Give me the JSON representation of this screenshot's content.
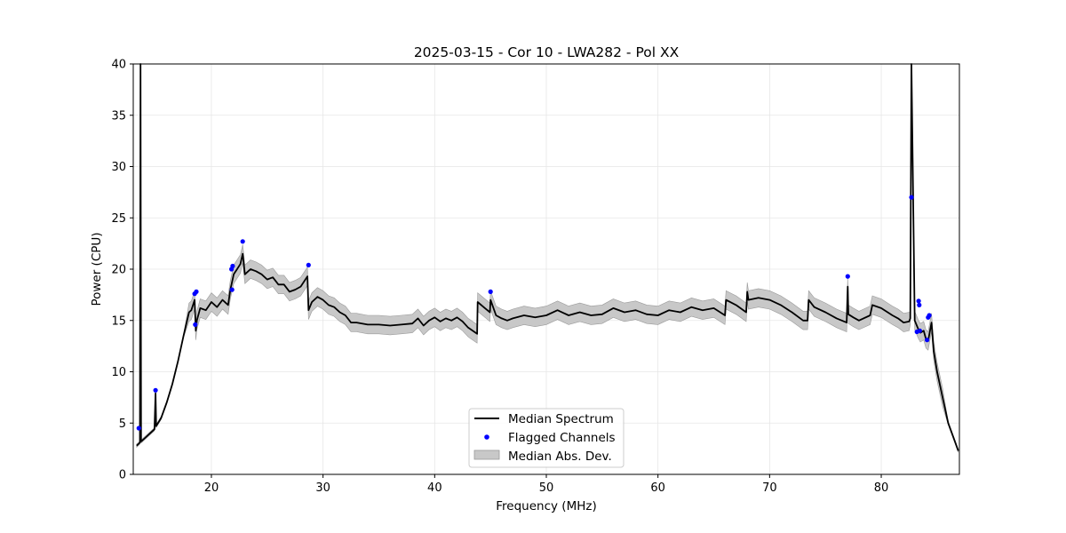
{
  "chart_data": {
    "type": "line",
    "title": "2025-03-15 - Cor 10 - LWA282 - Pol XX",
    "xlabel": "Frequency (MHz)",
    "ylabel": "Power (CPU)",
    "xlim": [
      13,
      87
    ],
    "ylim": [
      0,
      40
    ],
    "xticks": [
      20,
      30,
      40,
      50,
      60,
      70,
      80
    ],
    "yticks": [
      0,
      5,
      10,
      15,
      20,
      25,
      30,
      35,
      40
    ],
    "grid": true,
    "legend_position": "bottom-center",
    "legend": [
      "Median Spectrum",
      "Flagged Channels",
      "Median Abs. Dev."
    ],
    "colors": {
      "median": "#000000",
      "flagged": "#0000ff",
      "mad_fill": "#c8c8c8",
      "mad_edge": "#9a9a9a",
      "grid": "#e6e6e6"
    },
    "median_spectrum": {
      "x": [
        13.3,
        13.5,
        13.6,
        13.65,
        13.7,
        13.8,
        14.0,
        14.5,
        14.9,
        15.0,
        15.05,
        15.5,
        16.0,
        16.5,
        17.0,
        17.5,
        18.0,
        18.2,
        18.5,
        18.6,
        18.7,
        19.0,
        19.5,
        20.0,
        20.5,
        21.0,
        21.5,
        21.7,
        21.8,
        22.0,
        22.3,
        22.6,
        22.8,
        23.0,
        23.5,
        24.0,
        24.5,
        25.0,
        25.5,
        26.0,
        26.5,
        27.0,
        27.5,
        28.0,
        28.6,
        28.7,
        29.0,
        29.5,
        30.0,
        30.5,
        31.0,
        31.5,
        32.0,
        32.5,
        33.0,
        34.0,
        35.0,
        36.0,
        37.0,
        38.0,
        38.5,
        39.0,
        39.5,
        40.0,
        40.5,
        41.0,
        41.5,
        42.0,
        42.5,
        43.0,
        43.8,
        43.85,
        44.5,
        44.95,
        45.0,
        45.5,
        46.0,
        46.5,
        47.0,
        48.0,
        49.0,
        50.0,
        51.0,
        52.0,
        53.0,
        54.0,
        55.0,
        56.0,
        57.0,
        58.0,
        59.0,
        60.0,
        61.0,
        62.0,
        63.0,
        64.0,
        65.0,
        66.0,
        66.1,
        67.0,
        67.9,
        68.0,
        68.1,
        69.0,
        70.0,
        71.0,
        72.0,
        73.0,
        73.4,
        73.5,
        74.0,
        75.0,
        76.0,
        76.9,
        77.0,
        77.05,
        77.5,
        78.0,
        79.0,
        79.2,
        80.0,
        81.0,
        81.5,
        82.0,
        82.5,
        82.6,
        82.7,
        83.0,
        83.3,
        83.5,
        83.8,
        84.0,
        84.2,
        84.5,
        84.7,
        85.0,
        85.5,
        86.0,
        86.5,
        86.9
      ],
      "y": [
        2.8,
        3.0,
        3.1,
        40.0,
        3.2,
        3.3,
        3.5,
        4.0,
        4.4,
        7.9,
        4.7,
        5.5,
        7.0,
        8.8,
        11.0,
        13.5,
        15.8,
        16.0,
        17.0,
        14.0,
        15.0,
        16.2,
        16.0,
        16.8,
        16.3,
        17.0,
        16.5,
        18.0,
        18.5,
        19.5,
        20.0,
        20.5,
        21.5,
        19.5,
        20.0,
        19.8,
        19.5,
        19.0,
        19.2,
        18.5,
        18.5,
        17.8,
        18.0,
        18.3,
        19.3,
        16.0,
        16.8,
        17.3,
        17.0,
        16.5,
        16.3,
        15.8,
        15.5,
        14.8,
        14.8,
        14.6,
        14.6,
        14.5,
        14.6,
        14.7,
        15.2,
        14.5,
        15.0,
        15.3,
        14.9,
        15.2,
        15.0,
        15.3,
        14.9,
        14.3,
        13.7,
        16.8,
        16.2,
        15.8,
        17.0,
        15.5,
        15.2,
        15.0,
        15.2,
        15.5,
        15.3,
        15.5,
        16.0,
        15.5,
        15.8,
        15.5,
        15.6,
        16.2,
        15.8,
        16.0,
        15.6,
        15.5,
        16.0,
        15.8,
        16.3,
        16.0,
        16.2,
        15.5,
        17.0,
        16.5,
        15.8,
        17.8,
        17.0,
        17.2,
        17.0,
        16.5,
        15.8,
        15.0,
        15.0,
        17.0,
        16.3,
        15.8,
        15.2,
        14.8,
        18.3,
        15.6,
        15.3,
        15.0,
        15.5,
        16.5,
        16.2,
        15.5,
        15.2,
        14.8,
        14.9,
        15.2,
        40.0,
        15.0,
        14.2,
        13.8,
        14.0,
        13.2,
        13.0,
        14.8,
        12.0,
        10.0,
        7.5,
        5.0,
        3.5,
        2.3
      ]
    },
    "mad_halfwidth": 0.9,
    "flagged_channels": {
      "x": [
        13.5,
        15.0,
        18.5,
        18.55,
        18.65,
        21.8,
        21.9,
        21.85,
        22.8,
        28.7,
        45.0,
        77.0,
        82.7,
        83.2,
        83.35,
        83.4,
        83.45,
        84.1,
        84.2,
        84.3
      ],
      "y": [
        4.5,
        8.2,
        17.6,
        14.6,
        17.8,
        20.0,
        20.3,
        18.0,
        22.7,
        20.4,
        17.8,
        19.3,
        27.0,
        13.9,
        16.9,
        16.5,
        14.0,
        13.1,
        15.3,
        15.5
      ]
    }
  }
}
